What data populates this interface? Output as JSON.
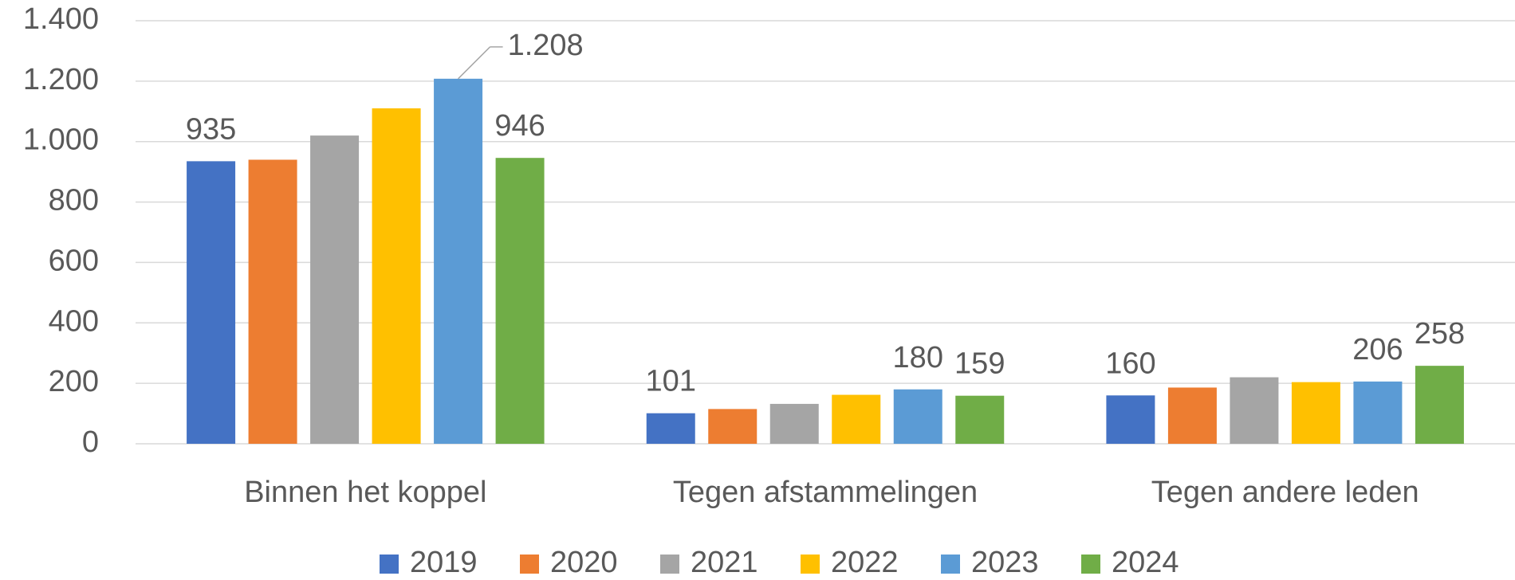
{
  "chart_data": {
    "type": "bar",
    "categories": [
      "Binnen het koppel",
      "Tegen afstammelingen",
      "Tegen andere leden"
    ],
    "series": [
      {
        "name": "2019",
        "color": "#4472c4",
        "values": [
          935,
          101,
          160
        ],
        "value_labels": [
          "935",
          "101",
          "160"
        ]
      },
      {
        "name": "2020",
        "color": "#ed7d31",
        "values": [
          940,
          115,
          186
        ],
        "value_labels": [
          null,
          null,
          null
        ]
      },
      {
        "name": "2021",
        "color": "#a5a5a5",
        "values": [
          1020,
          132,
          220
        ],
        "value_labels": [
          null,
          null,
          null
        ]
      },
      {
        "name": "2022",
        "color": "#ffc000",
        "values": [
          1110,
          162,
          204
        ],
        "value_labels": [
          null,
          null,
          null
        ]
      },
      {
        "name": "2023",
        "color": "#5b9bd5",
        "values": [
          1208,
          180,
          206
        ],
        "value_labels": [
          "1.208",
          "180",
          "206"
        ]
      },
      {
        "name": "2024",
        "color": "#70ad47",
        "values": [
          946,
          159,
          258
        ],
        "value_labels": [
          "946",
          "159",
          "258"
        ]
      }
    ],
    "ylim": [
      0,
      1400
    ],
    "yticks": [
      0,
      200,
      400,
      600,
      800,
      {
        "value": 1000,
        "label": "1.000"
      },
      {
        "value": 1200,
        "label": "1.200"
      },
      {
        "value": 1400,
        "label": "1.400"
      }
    ],
    "grid": true,
    "legend": "bottom"
  }
}
